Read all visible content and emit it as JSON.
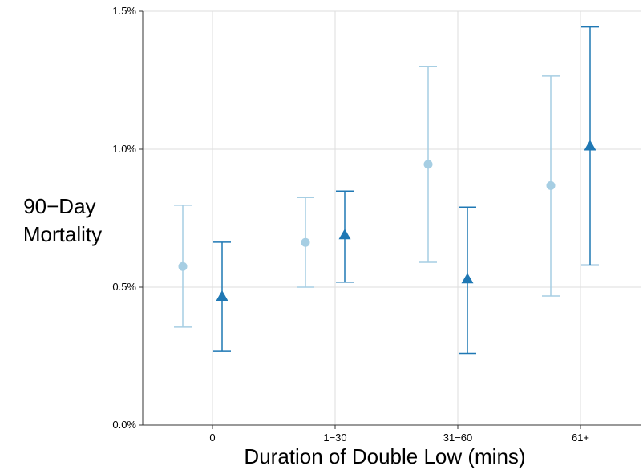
{
  "chart_data": {
    "type": "scatter",
    "xlabel": "Duration of Double Low (mins)",
    "ylabel_lines": [
      "90−Day",
      "Mortality"
    ],
    "categories": [
      "0",
      "1−30",
      "31−60",
      "61+"
    ],
    "yticks": [
      {
        "value": 0.0,
        "label": "0.0%"
      },
      {
        "value": 0.5,
        "label": "0.5%"
      },
      {
        "value": 1.0,
        "label": "1.0%"
      },
      {
        "value": 1.5,
        "label": "1.5%"
      }
    ],
    "ylim": [
      0.0,
      1.5
    ],
    "grid": true,
    "series": [
      {
        "marker": "circle",
        "color": "#a6cee3",
        "values": [
          0.575,
          0.662,
          0.945,
          0.868
        ],
        "lower": [
          0.355,
          0.5,
          0.59,
          0.468
        ],
        "upper": [
          0.797,
          0.825,
          1.3,
          1.265
        ]
      },
      {
        "marker": "triangle",
        "color": "#1f78b4",
        "values": [
          0.465,
          0.688,
          0.528,
          1.01
        ],
        "lower": [
          0.267,
          0.518,
          0.26,
          0.58
        ],
        "upper": [
          0.663,
          0.848,
          0.79,
          1.443
        ]
      }
    ]
  }
}
